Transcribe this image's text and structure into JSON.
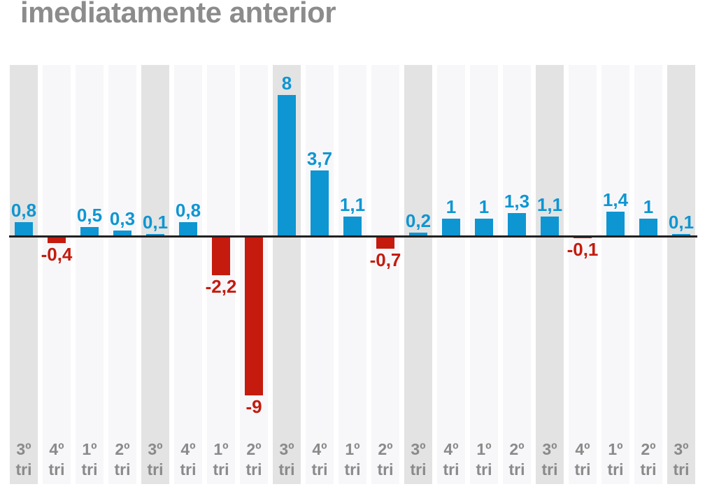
{
  "title": "imediatamente anterior",
  "colors": {
    "title_text": "#8c8c8c",
    "positive_bar": "#0e96d2",
    "negative_bar": "#c41b0e",
    "axis_line": "#232021",
    "tick_text": "#8a8a8a",
    "stripe_highlight": "#e3e3e3",
    "stripe_normal": "#f7f7fa"
  },
  "chart_data": {
    "type": "bar",
    "title": "imediatamente anterior",
    "xlabel": "",
    "ylabel": "",
    "ylim": [
      -9.6,
      8.6
    ],
    "grid": false,
    "legend": "none",
    "tick_second_line": "tri",
    "categories": [
      "3º tri",
      "4º tri",
      "1º tri",
      "2º tri",
      "3º tri",
      "4º tri",
      "1º tri",
      "2º tri",
      "3º tri",
      "4º tri",
      "1º tri",
      "2º tri",
      "3º tri",
      "4º tri",
      "1º tri",
      "2º tri",
      "3º tri",
      "4º tri",
      "1º tri",
      "2º tri",
      "3º tri"
    ],
    "values": [
      0.8,
      -0.4,
      0.5,
      0.3,
      0.1,
      0.8,
      -2.2,
      -9,
      8,
      3.7,
      1.1,
      -0.7,
      0.2,
      1,
      1,
      1.3,
      1.1,
      -0.1,
      1.4,
      1,
      0.1
    ],
    "points": [
      {
        "quarter": "3º",
        "label": "0,8",
        "value": 0.8,
        "highlight": true
      },
      {
        "quarter": "4º",
        "label": "-0,4",
        "value": -0.4,
        "highlight": false
      },
      {
        "quarter": "1º",
        "label": "0,5",
        "value": 0.5,
        "highlight": false
      },
      {
        "quarter": "2º",
        "label": "0,3",
        "value": 0.3,
        "highlight": false
      },
      {
        "quarter": "3º",
        "label": "0,1",
        "value": 0.1,
        "highlight": true
      },
      {
        "quarter": "4º",
        "label": "0,8",
        "value": 0.8,
        "highlight": false
      },
      {
        "quarter": "1º",
        "label": "-2,2",
        "value": -2.2,
        "highlight": false
      },
      {
        "quarter": "2º",
        "label": "-9",
        "value": -9,
        "highlight": false
      },
      {
        "quarter": "3º",
        "label": "8",
        "value": 8,
        "highlight": true
      },
      {
        "quarter": "4º",
        "label": "3,7",
        "value": 3.7,
        "highlight": false
      },
      {
        "quarter": "1º",
        "label": "1,1",
        "value": 1.1,
        "highlight": false
      },
      {
        "quarter": "2º",
        "label": "-0,7",
        "value": -0.7,
        "highlight": false
      },
      {
        "quarter": "3º",
        "label": "0,2",
        "value": 0.2,
        "highlight": true
      },
      {
        "quarter": "4º",
        "label": "1",
        "value": 1,
        "highlight": false
      },
      {
        "quarter": "1º",
        "label": "1",
        "value": 1,
        "highlight": false
      },
      {
        "quarter": "2º",
        "label": "1,3",
        "value": 1.3,
        "highlight": false
      },
      {
        "quarter": "3º",
        "label": "1,1",
        "value": 1.1,
        "highlight": true
      },
      {
        "quarter": "4º",
        "label": "-0,1",
        "value": -0.1,
        "highlight": false
      },
      {
        "quarter": "1º",
        "label": "1,4",
        "value": 1.4,
        "highlight": false
      },
      {
        "quarter": "2º",
        "label": "1",
        "value": 1,
        "highlight": false
      },
      {
        "quarter": "3º",
        "label": "0,1",
        "value": 0.1,
        "highlight": true
      }
    ]
  }
}
